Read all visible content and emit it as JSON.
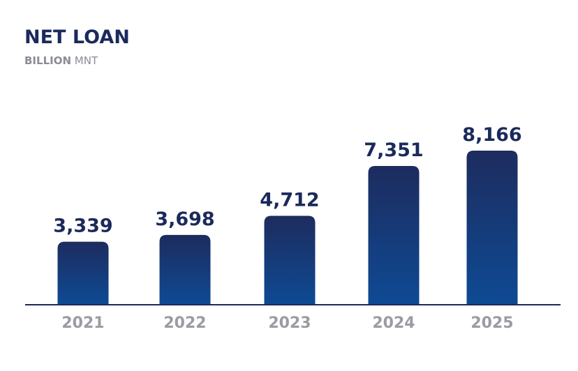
{
  "chart_data": {
    "type": "bar",
    "title": "NET LOAN",
    "subtitle_bold": "BILLION",
    "subtitle_rest": " MNT",
    "categories": [
      "2021",
      "2022",
      "2023",
      "2024",
      "2025"
    ],
    "values": [
      3339,
      3698,
      4712,
      7351,
      8166
    ],
    "data_labels": [
      "3,339",
      "3,698",
      "4,712",
      "7,351",
      "8,166"
    ],
    "colors": {
      "bar_top": "#1d2c5e",
      "bar_bottom": "#0e4a94",
      "axis": "#1b2a5c",
      "title": "#1b2a5c",
      "label": "#1b2a5c",
      "tick": "#9a9ca3"
    },
    "grid": false,
    "legend": "none"
  }
}
